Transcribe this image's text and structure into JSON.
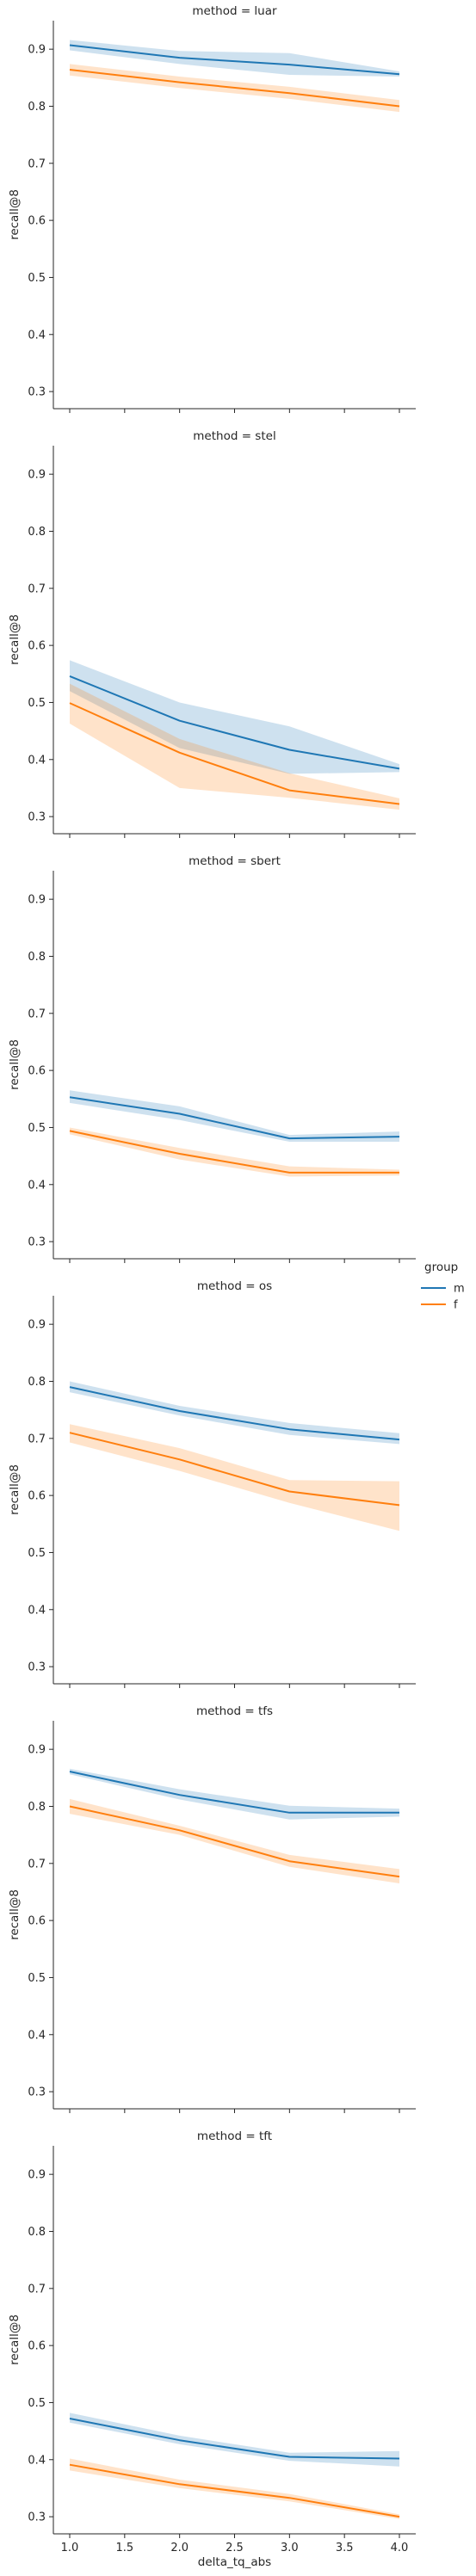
{
  "legend": {
    "title": "group",
    "entries": [
      {
        "label": "m",
        "color": "#1f77b4"
      },
      {
        "label": "f",
        "color": "#ff7f0e"
      }
    ]
  },
  "xlabel": "delta_tq_abs",
  "chart_data": [
    {
      "type": "line",
      "title": "method = luar",
      "xlabel": "",
      "ylabel": "recall@8",
      "ylim": [
        0.27,
        0.95
      ],
      "yticks": [
        0.3,
        0.4,
        0.5,
        0.6,
        0.7,
        0.8,
        0.9
      ],
      "xticks": [
        1.0,
        1.5,
        2.0,
        2.5,
        3.0,
        3.5,
        4.0
      ],
      "x": [
        1.0,
        2.0,
        3.0,
        4.0
      ],
      "series": [
        {
          "name": "m",
          "color": "#1f77b4",
          "values": [
            0.907,
            0.885,
            0.873,
            0.856
          ],
          "lower": [
            0.898,
            0.874,
            0.855,
            0.852
          ],
          "upper": [
            0.916,
            0.897,
            0.893,
            0.861
          ]
        },
        {
          "name": "f",
          "color": "#ff7f0e",
          "values": [
            0.864,
            0.842,
            0.823,
            0.8
          ],
          "lower": [
            0.854,
            0.832,
            0.813,
            0.79
          ],
          "upper": [
            0.874,
            0.852,
            0.834,
            0.811
          ]
        }
      ]
    },
    {
      "type": "line",
      "title": "method = stel",
      "xlabel": "",
      "ylabel": "recall@8",
      "ylim": [
        0.27,
        0.95
      ],
      "yticks": [
        0.3,
        0.4,
        0.5,
        0.6,
        0.7,
        0.8,
        0.9
      ],
      "xticks": [
        1.0,
        1.5,
        2.0,
        2.5,
        3.0,
        3.5,
        4.0
      ],
      "x": [
        1.0,
        2.0,
        3.0,
        4.0
      ],
      "series": [
        {
          "name": "m",
          "color": "#1f77b4",
          "values": [
            0.546,
            0.468,
            0.417,
            0.384
          ],
          "lower": [
            0.52,
            0.42,
            0.375,
            0.378
          ],
          "upper": [
            0.574,
            0.5,
            0.458,
            0.392
          ]
        },
        {
          "name": "f",
          "color": "#ff7f0e",
          "values": [
            0.499,
            0.412,
            0.346,
            0.322
          ],
          "lower": [
            0.463,
            0.35,
            0.333,
            0.312
          ],
          "upper": [
            0.533,
            0.436,
            0.376,
            0.332
          ]
        }
      ]
    },
    {
      "type": "line",
      "title": "method = sbert",
      "xlabel": "",
      "ylabel": "recall@8",
      "ylim": [
        0.27,
        0.95
      ],
      "yticks": [
        0.3,
        0.4,
        0.5,
        0.6,
        0.7,
        0.8,
        0.9
      ],
      "xticks": [
        1.0,
        1.5,
        2.0,
        2.5,
        3.0,
        3.5,
        4.0
      ],
      "x": [
        1.0,
        2.0,
        3.0,
        4.0
      ],
      "series": [
        {
          "name": "m",
          "color": "#1f77b4",
          "values": [
            0.553,
            0.524,
            0.481,
            0.484
          ],
          "lower": [
            0.543,
            0.513,
            0.475,
            0.475
          ],
          "upper": [
            0.565,
            0.537,
            0.487,
            0.493
          ]
        },
        {
          "name": "f",
          "color": "#ff7f0e",
          "values": [
            0.494,
            0.454,
            0.421,
            0.421
          ],
          "lower": [
            0.488,
            0.444,
            0.414,
            0.416
          ],
          "upper": [
            0.5,
            0.464,
            0.432,
            0.426
          ]
        }
      ]
    },
    {
      "type": "line",
      "title": "method = os",
      "xlabel": "",
      "ylabel": "recall@8",
      "ylim": [
        0.27,
        0.95
      ],
      "yticks": [
        0.3,
        0.4,
        0.5,
        0.6,
        0.7,
        0.8,
        0.9
      ],
      "xticks": [
        1.0,
        1.5,
        2.0,
        2.5,
        3.0,
        3.5,
        4.0
      ],
      "x": [
        1.0,
        2.0,
        3.0,
        4.0
      ],
      "series": [
        {
          "name": "m",
          "color": "#1f77b4",
          "values": [
            0.79,
            0.748,
            0.716,
            0.698
          ],
          "lower": [
            0.781,
            0.74,
            0.706,
            0.69
          ],
          "upper": [
            0.8,
            0.757,
            0.727,
            0.709
          ]
        },
        {
          "name": "f",
          "color": "#ff7f0e",
          "values": [
            0.71,
            0.663,
            0.607,
            0.583
          ],
          "lower": [
            0.693,
            0.643,
            0.587,
            0.538
          ],
          "upper": [
            0.725,
            0.683,
            0.627,
            0.625
          ]
        }
      ]
    },
    {
      "type": "line",
      "title": "method = tfs",
      "xlabel": "",
      "ylabel": "recall@8",
      "ylim": [
        0.27,
        0.95
      ],
      "yticks": [
        0.3,
        0.4,
        0.5,
        0.6,
        0.7,
        0.8,
        0.9
      ],
      "xticks": [
        1.0,
        1.5,
        2.0,
        2.5,
        3.0,
        3.5,
        4.0
      ],
      "x": [
        1.0,
        2.0,
        3.0,
        4.0
      ],
      "series": [
        {
          "name": "m",
          "color": "#1f77b4",
          "values": [
            0.861,
            0.82,
            0.789,
            0.789
          ],
          "lower": [
            0.856,
            0.812,
            0.777,
            0.782
          ],
          "upper": [
            0.866,
            0.83,
            0.801,
            0.796
          ]
        },
        {
          "name": "f",
          "color": "#ff7f0e",
          "values": [
            0.8,
            0.758,
            0.704,
            0.677
          ],
          "lower": [
            0.787,
            0.75,
            0.694,
            0.665
          ],
          "upper": [
            0.813,
            0.766,
            0.715,
            0.69
          ]
        }
      ]
    },
    {
      "type": "line",
      "title": "method = tft",
      "xlabel": "delta_tq_abs",
      "ylabel": "recall@8",
      "ylim": [
        0.27,
        0.95
      ],
      "yticks": [
        0.3,
        0.4,
        0.5,
        0.6,
        0.7,
        0.8,
        0.9
      ],
      "xticks": [
        1.0,
        1.5,
        2.0,
        2.5,
        3.0,
        3.5,
        4.0
      ],
      "x": [
        1.0,
        2.0,
        3.0,
        4.0
      ],
      "series": [
        {
          "name": "m",
          "color": "#1f77b4",
          "values": [
            0.472,
            0.434,
            0.405,
            0.402
          ],
          "lower": [
            0.465,
            0.427,
            0.398,
            0.388
          ],
          "upper": [
            0.482,
            0.442,
            0.412,
            0.415
          ]
        },
        {
          "name": "f",
          "color": "#ff7f0e",
          "values": [
            0.391,
            0.357,
            0.333,
            0.3
          ],
          "lower": [
            0.381,
            0.35,
            0.327,
            0.296
          ],
          "upper": [
            0.402,
            0.365,
            0.34,
            0.304
          ]
        }
      ]
    }
  ]
}
